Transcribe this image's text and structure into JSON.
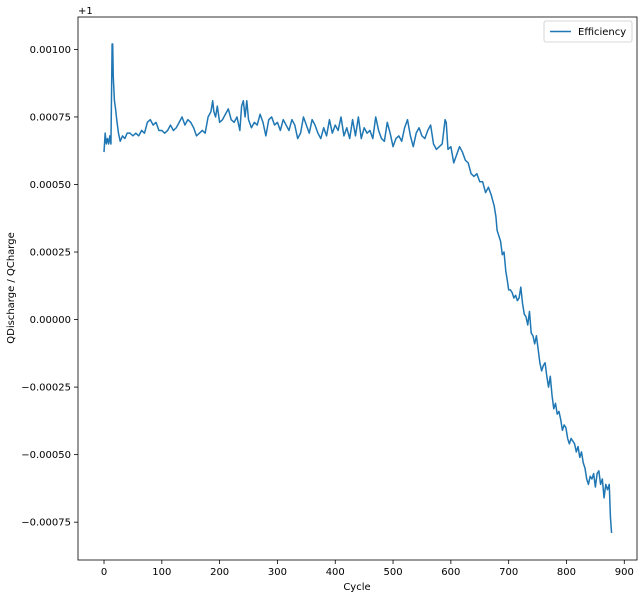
{
  "chart_data": {
    "type": "line",
    "title": "",
    "xlabel": "Cycle",
    "ylabel": "QDischarge / QCharge",
    "offset_label": "+1",
    "xlim": [
      -45,
      922
    ],
    "ylim": [
      -0.00089,
      0.00112
    ],
    "x_ticks": [
      0,
      100,
      200,
      300,
      400,
      500,
      600,
      700,
      800,
      900
    ],
    "y_ticks": [
      0.001,
      0.00075,
      0.0005,
      0.00025,
      0.0,
      -0.00025,
      -0.0005,
      -0.00075
    ],
    "y_tick_labels": [
      "0.00100",
      "0.00075",
      "0.00050",
      "0.00025",
      "0.00000",
      "−0.00025",
      "−0.00050",
      "−0.00075"
    ],
    "legend_position": "top-right",
    "grid": false,
    "series": [
      {
        "name": "Efficiency",
        "color": "#1f77b4",
        "points": [
          [
            0,
            0.00062
          ],
          [
            2,
            0.00069
          ],
          [
            4,
            0.00065
          ],
          [
            6,
            0.00067
          ],
          [
            8,
            0.00065
          ],
          [
            10,
            0.00068
          ],
          [
            12,
            0.00065
          ],
          [
            14,
            0.00102
          ],
          [
            15,
            0.00102
          ],
          [
            16,
            0.0009
          ],
          [
            18,
            0.00081
          ],
          [
            20,
            0.00078
          ],
          [
            22,
            0.00074
          ],
          [
            25,
            0.00069
          ],
          [
            28,
            0.00066
          ],
          [
            32,
            0.00068
          ],
          [
            36,
            0.00067
          ],
          [
            40,
            0.00069
          ],
          [
            45,
            0.00069
          ],
          [
            50,
            0.00068
          ],
          [
            55,
            0.00069
          ],
          [
            60,
            0.00068
          ],
          [
            65,
            0.0007
          ],
          [
            70,
            0.00069
          ],
          [
            75,
            0.00073
          ],
          [
            80,
            0.00074
          ],
          [
            85,
            0.00072
          ],
          [
            90,
            0.00073
          ],
          [
            95,
            0.0007
          ],
          [
            100,
            0.0007
          ],
          [
            105,
            0.00069
          ],
          [
            110,
            0.0007
          ],
          [
            115,
            0.00072
          ],
          [
            120,
            0.0007
          ],
          [
            125,
            0.00071
          ],
          [
            130,
            0.00073
          ],
          [
            135,
            0.00075
          ],
          [
            140,
            0.00072
          ],
          [
            145,
            0.00074
          ],
          [
            150,
            0.00073
          ],
          [
            155,
            0.00071
          ],
          [
            160,
            0.00068
          ],
          [
            165,
            0.00069
          ],
          [
            170,
            0.0007
          ],
          [
            175,
            0.00069
          ],
          [
            180,
            0.00075
          ],
          [
            185,
            0.00077
          ],
          [
            188,
            0.00081
          ],
          [
            190,
            0.00077
          ],
          [
            193,
            0.00075
          ],
          [
            196,
            0.00079
          ],
          [
            200,
            0.00073
          ],
          [
            205,
            0.00074
          ],
          [
            210,
            0.00076
          ],
          [
            215,
            0.00078
          ],
          [
            220,
            0.00074
          ],
          [
            225,
            0.00073
          ],
          [
            230,
            0.00075
          ],
          [
            235,
            0.0007
          ],
          [
            238,
            0.00079
          ],
          [
            241,
            0.00081
          ],
          [
            244,
            0.00075
          ],
          [
            247,
            0.00081
          ],
          [
            250,
            0.00074
          ],
          [
            255,
            0.00071
          ],
          [
            260,
            0.00073
          ],
          [
            265,
            0.00072
          ],
          [
            270,
            0.00076
          ],
          [
            275,
            0.00073
          ],
          [
            280,
            0.00068
          ],
          [
            285,
            0.00074
          ],
          [
            290,
            0.00075
          ],
          [
            295,
            0.00072
          ],
          [
            300,
            0.00073
          ],
          [
            305,
            0.0007
          ],
          [
            310,
            0.00074
          ],
          [
            315,
            0.00072
          ],
          [
            320,
            0.0007
          ],
          [
            325,
            0.00074
          ],
          [
            330,
            0.00072
          ],
          [
            335,
            0.00067
          ],
          [
            340,
            0.00069
          ],
          [
            345,
            0.00075
          ],
          [
            350,
            0.00072
          ],
          [
            355,
            0.00069
          ],
          [
            360,
            0.00074
          ],
          [
            365,
            0.00072
          ],
          [
            370,
            0.00069
          ],
          [
            375,
            0.00067
          ],
          [
            380,
            0.00071
          ],
          [
            385,
            0.00068
          ],
          [
            390,
            0.00074
          ],
          [
            395,
            0.00069
          ],
          [
            400,
            0.00072
          ],
          [
            405,
            0.0007
          ],
          [
            410,
            0.00075
          ],
          [
            415,
            0.00068
          ],
          [
            420,
            0.00071
          ],
          [
            425,
            0.00067
          ],
          [
            430,
            0.00074
          ],
          [
            435,
            0.00068
          ],
          [
            440,
            0.00075
          ],
          [
            445,
            0.00067
          ],
          [
            450,
            0.00071
          ],
          [
            455,
            0.00069
          ],
          [
            460,
            0.0007
          ],
          [
            465,
            0.00067
          ],
          [
            470,
            0.00075
          ],
          [
            475,
            0.0007
          ],
          [
            480,
            0.00067
          ],
          [
            485,
            0.00066
          ],
          [
            490,
            0.00073
          ],
          [
            495,
            0.00069
          ],
          [
            500,
            0.00064
          ],
          [
            505,
            0.00067
          ],
          [
            510,
            0.00068
          ],
          [
            515,
            0.00066
          ],
          [
            520,
            0.00071
          ],
          [
            525,
            0.00074
          ],
          [
            530,
            0.00068
          ],
          [
            535,
            0.00064
          ],
          [
            540,
            0.00069
          ],
          [
            545,
            0.00071
          ],
          [
            550,
            0.00068
          ],
          [
            555,
            0.00067
          ],
          [
            560,
            0.0007
          ],
          [
            565,
            0.00072
          ],
          [
            570,
            0.00065
          ],
          [
            575,
            0.00063
          ],
          [
            580,
            0.00064
          ],
          [
            585,
            0.00065
          ],
          [
            590,
            0.00074
          ],
          [
            592,
            0.00073
          ],
          [
            595,
            0.00063
          ],
          [
            600,
            0.00064
          ],
          [
            605,
            0.00058
          ],
          [
            610,
            0.00061
          ],
          [
            615,
            0.00064
          ],
          [
            620,
            0.00062
          ],
          [
            625,
            0.00059
          ],
          [
            630,
            0.00058
          ],
          [
            635,
            0.00054
          ],
          [
            640,
            0.00053
          ],
          [
            645,
            0.00054
          ],
          [
            650,
            0.00051
          ],
          [
            655,
            0.00051
          ],
          [
            660,
            0.00047
          ],
          [
            665,
            0.00049
          ],
          [
            670,
            0.00046
          ],
          [
            675,
            0.00042
          ],
          [
            678,
            0.00038
          ],
          [
            680,
            0.00033
          ],
          [
            683,
            0.00031
          ],
          [
            686,
            0.00029
          ],
          [
            689,
            0.00024
          ],
          [
            692,
            0.00025
          ],
          [
            695,
            0.00018
          ],
          [
            698,
            0.00014
          ],
          [
            700,
            0.00011
          ],
          [
            703,
            0.00011
          ],
          [
            706,
            0.0001
          ],
          [
            709,
            8e-05
          ],
          [
            712,
            9e-05
          ],
          [
            715,
            7e-05
          ],
          [
            718,
            8e-05
          ],
          [
            721,
            0.00012
          ],
          [
            724,
            6e-05
          ],
          [
            727,
            2e-05
          ],
          [
            730,
            1e-05
          ],
          [
            733,
            -2e-05
          ],
          [
            736,
            3e-05
          ],
          [
            739,
            -5e-05
          ],
          [
            742,
            -6e-05
          ],
          [
            745,
            -9e-05
          ],
          [
            748,
            -6e-05
          ],
          [
            751,
            -0.00011
          ],
          [
            754,
            -0.00016
          ],
          [
            757,
            -0.00019
          ],
          [
            760,
            -0.00017
          ],
          [
            763,
            -0.00016
          ],
          [
            766,
            -0.00021
          ],
          [
            769,
            -0.00025
          ],
          [
            772,
            -0.00021
          ],
          [
            775,
            -0.00028
          ],
          [
            778,
            -0.00033
          ],
          [
            781,
            -0.00031
          ],
          [
            784,
            -0.00035
          ],
          [
            787,
            -0.00034
          ],
          [
            790,
            -0.00037
          ],
          [
            793,
            -0.00041
          ],
          [
            796,
            -0.00039
          ],
          [
            799,
            -0.0004
          ],
          [
            802,
            -0.00044
          ],
          [
            805,
            -0.00046
          ],
          [
            808,
            -0.00044
          ],
          [
            811,
            -0.00045
          ],
          [
            814,
            -0.00046
          ],
          [
            817,
            -0.00049
          ],
          [
            820,
            -0.00047
          ],
          [
            823,
            -0.00051
          ],
          [
            826,
            -0.00049
          ],
          [
            829,
            -0.00053
          ],
          [
            832,
            -0.00055
          ],
          [
            835,
            -0.00059
          ],
          [
            838,
            -0.00061
          ],
          [
            841,
            -0.00058
          ],
          [
            844,
            -0.00059
          ],
          [
            847,
            -0.00057
          ],
          [
            850,
            -0.00062
          ],
          [
            853,
            -0.00057
          ],
          [
            856,
            -0.00056
          ],
          [
            859,
            -0.00061
          ],
          [
            862,
            -0.00059
          ],
          [
            865,
            -0.00066
          ],
          [
            868,
            -0.00061
          ],
          [
            871,
            -0.00063
          ],
          [
            874,
            -0.00061
          ],
          [
            876,
            -0.00073
          ],
          [
            878,
            -0.00079
          ]
        ]
      }
    ]
  }
}
